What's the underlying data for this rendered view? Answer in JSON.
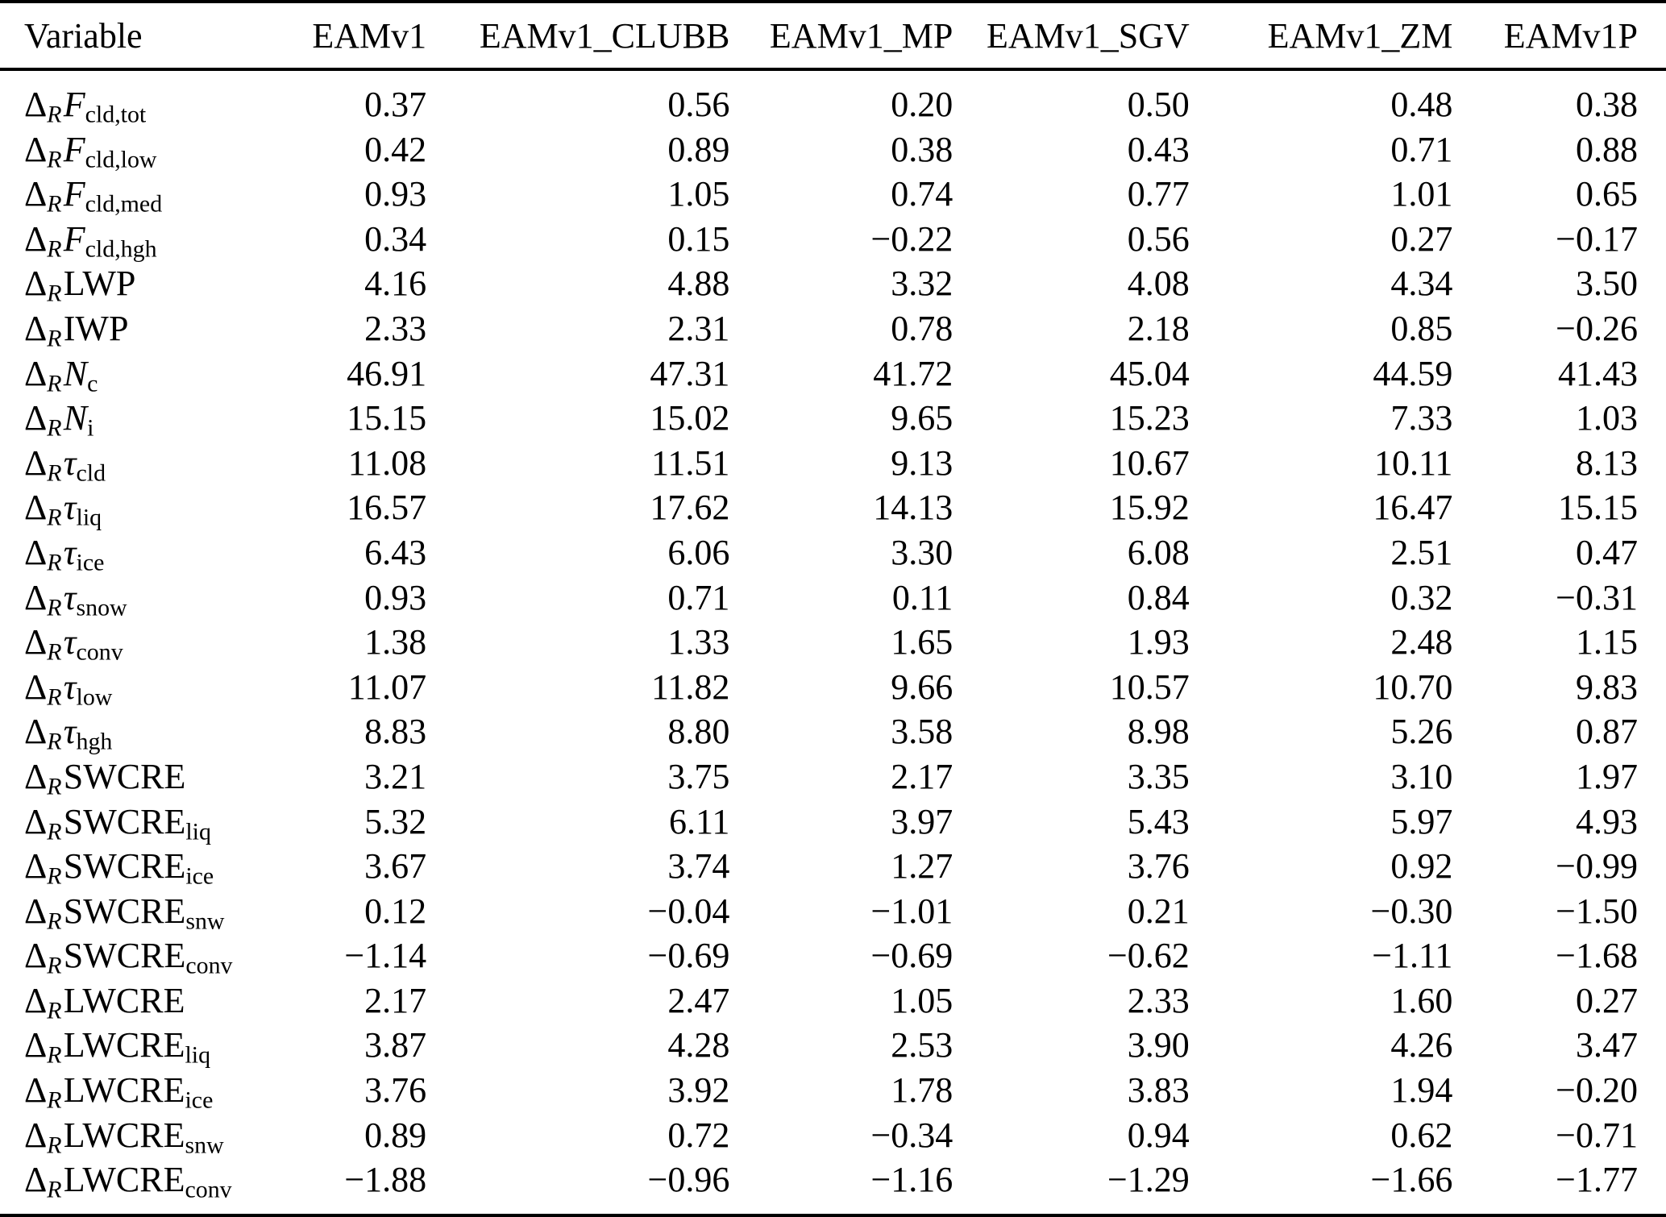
{
  "colors": {
    "background": "#ffffff",
    "text": "#000000",
    "rule": "#000000"
  },
  "table": {
    "columns": [
      "Variable",
      "EAMv1",
      "EAMv1_CLUBB",
      "EAMv1_MP",
      "EAMv1_SGV",
      "EAMv1_ZM",
      "EAMv1P"
    ],
    "delta_prefix": "Δ",
    "delta_subscript": "R",
    "rows": [
      {
        "variable": {
          "base": "F",
          "italic": true,
          "sub": "cld,tot"
        },
        "values": [
          "0.37",
          "0.56",
          "0.20",
          "0.50",
          "0.48",
          "0.38"
        ]
      },
      {
        "variable": {
          "base": "F",
          "italic": true,
          "sub": "cld,low"
        },
        "values": [
          "0.42",
          "0.89",
          "0.38",
          "0.43",
          "0.71",
          "0.88"
        ]
      },
      {
        "variable": {
          "base": "F",
          "italic": true,
          "sub": "cld,med"
        },
        "values": [
          "0.93",
          "1.05",
          "0.74",
          "0.77",
          "1.01",
          "0.65"
        ]
      },
      {
        "variable": {
          "base": "F",
          "italic": true,
          "sub": "cld,hgh"
        },
        "values": [
          "0.34",
          "0.15",
          "−0.22",
          "0.56",
          "0.27",
          "−0.17"
        ]
      },
      {
        "variable": {
          "base": "LWP",
          "italic": false,
          "sub": ""
        },
        "values": [
          "4.16",
          "4.88",
          "3.32",
          "4.08",
          "4.34",
          "3.50"
        ]
      },
      {
        "variable": {
          "base": "IWP",
          "italic": false,
          "sub": ""
        },
        "values": [
          "2.33",
          "2.31",
          "0.78",
          "2.18",
          "0.85",
          "−0.26"
        ]
      },
      {
        "variable": {
          "base": "N",
          "italic": true,
          "sub": "c"
        },
        "values": [
          "46.91",
          "47.31",
          "41.72",
          "45.04",
          "44.59",
          "41.43"
        ]
      },
      {
        "variable": {
          "base": "N",
          "italic": true,
          "sub": "i"
        },
        "values": [
          "15.15",
          "15.02",
          "9.65",
          "15.23",
          "7.33",
          "1.03"
        ]
      },
      {
        "variable": {
          "base": "τ",
          "italic": true,
          "sub": "cld"
        },
        "values": [
          "11.08",
          "11.51",
          "9.13",
          "10.67",
          "10.11",
          "8.13"
        ]
      },
      {
        "variable": {
          "base": "τ",
          "italic": true,
          "sub": "liq"
        },
        "values": [
          "16.57",
          "17.62",
          "14.13",
          "15.92",
          "16.47",
          "15.15"
        ]
      },
      {
        "variable": {
          "base": "τ",
          "italic": true,
          "sub": "ice"
        },
        "values": [
          "6.43",
          "6.06",
          "3.30",
          "6.08",
          "2.51",
          "0.47"
        ]
      },
      {
        "variable": {
          "base": "τ",
          "italic": true,
          "sub": "snow"
        },
        "values": [
          "0.93",
          "0.71",
          "0.11",
          "0.84",
          "0.32",
          "−0.31"
        ]
      },
      {
        "variable": {
          "base": "τ",
          "italic": true,
          "sub": "conv"
        },
        "values": [
          "1.38",
          "1.33",
          "1.65",
          "1.93",
          "2.48",
          "1.15"
        ]
      },
      {
        "variable": {
          "base": "τ",
          "italic": true,
          "sub": "low"
        },
        "values": [
          "11.07",
          "11.82",
          "9.66",
          "10.57",
          "10.70",
          "9.83"
        ]
      },
      {
        "variable": {
          "base": "τ",
          "italic": true,
          "sub": "hgh"
        },
        "values": [
          "8.83",
          "8.80",
          "3.58",
          "8.98",
          "5.26",
          "0.87"
        ]
      },
      {
        "variable": {
          "base": "SWCRE",
          "italic": false,
          "sub": ""
        },
        "values": [
          "3.21",
          "3.75",
          "2.17",
          "3.35",
          "3.10",
          "1.97"
        ]
      },
      {
        "variable": {
          "base": "SWCRE",
          "italic": false,
          "sub": "liq"
        },
        "values": [
          "5.32",
          "6.11",
          "3.97",
          "5.43",
          "5.97",
          "4.93"
        ]
      },
      {
        "variable": {
          "base": "SWCRE",
          "italic": false,
          "sub": "ice"
        },
        "values": [
          "3.67",
          "3.74",
          "1.27",
          "3.76",
          "0.92",
          "−0.99"
        ]
      },
      {
        "variable": {
          "base": "SWCRE",
          "italic": false,
          "sub": "snw"
        },
        "values": [
          "0.12",
          "−0.04",
          "−1.01",
          "0.21",
          "−0.30",
          "−1.50"
        ]
      },
      {
        "variable": {
          "base": "SWCRE",
          "italic": false,
          "sub": "conv"
        },
        "values": [
          "−1.14",
          "−0.69",
          "−0.69",
          "−0.62",
          "−1.11",
          "−1.68"
        ]
      },
      {
        "variable": {
          "base": "LWCRE",
          "italic": false,
          "sub": ""
        },
        "values": [
          "2.17",
          "2.47",
          "1.05",
          "2.33",
          "1.60",
          "0.27"
        ]
      },
      {
        "variable": {
          "base": "LWCRE",
          "italic": false,
          "sub": "liq"
        },
        "values": [
          "3.87",
          "4.28",
          "2.53",
          "3.90",
          "4.26",
          "3.47"
        ]
      },
      {
        "variable": {
          "base": "LWCRE",
          "italic": false,
          "sub": "ice"
        },
        "values": [
          "3.76",
          "3.92",
          "1.78",
          "3.83",
          "1.94",
          "−0.20"
        ]
      },
      {
        "variable": {
          "base": "LWCRE",
          "italic": false,
          "sub": "snw"
        },
        "values": [
          "0.89",
          "0.72",
          "−0.34",
          "0.94",
          "0.62",
          "−0.71"
        ]
      },
      {
        "variable": {
          "base": "LWCRE",
          "italic": false,
          "sub": "conv"
        },
        "values": [
          "−1.88",
          "−0.96",
          "−1.16",
          "−1.29",
          "−1.66",
          "−1.77"
        ]
      }
    ]
  }
}
